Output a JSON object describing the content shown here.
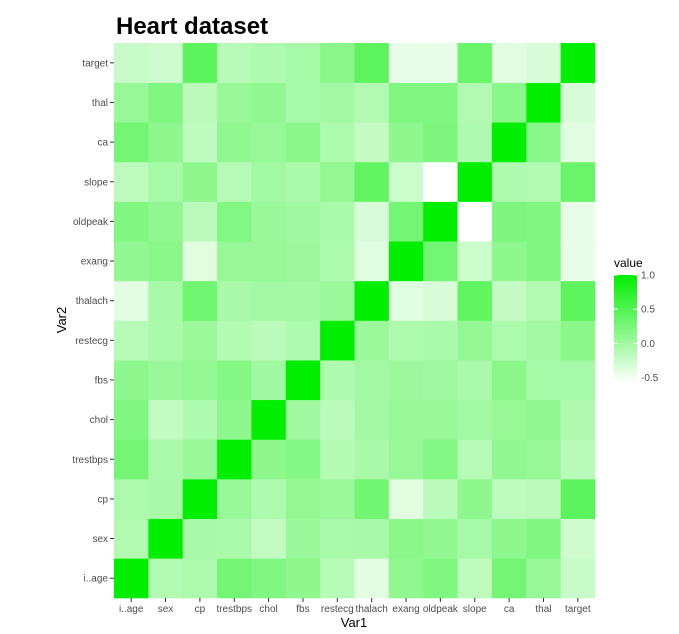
{
  "chart_data": {
    "type": "heatmap",
    "title": "Heart dataset",
    "xlabel": "Var1",
    "ylabel": "Var2",
    "x_categories": [
      "i..age",
      "sex",
      "cp",
      "trestbps",
      "chol",
      "fbs",
      "restecg",
      "thalach",
      "exang",
      "oldpeak",
      "slope",
      "ca",
      "thal",
      "target"
    ],
    "y_categories": [
      "i..age",
      "sex",
      "cp",
      "trestbps",
      "chol",
      "fbs",
      "restecg",
      "thalach",
      "exang",
      "oldpeak",
      "slope",
      "ca",
      "thal",
      "target"
    ],
    "values": [
      [
        1.0,
        -0.1,
        -0.07,
        0.28,
        0.21,
        0.12,
        -0.12,
        -0.4,
        0.1,
        0.21,
        -0.17,
        0.28,
        0.07,
        -0.23
      ],
      [
        -0.1,
        1.0,
        -0.05,
        -0.06,
        -0.2,
        0.05,
        -0.06,
        -0.04,
        0.14,
        0.1,
        -0.03,
        0.12,
        0.21,
        -0.28
      ],
      [
        -0.07,
        -0.05,
        1.0,
        0.05,
        -0.08,
        0.09,
        0.04,
        0.3,
        -0.39,
        -0.15,
        0.12,
        -0.18,
        -0.16,
        0.43
      ],
      [
        0.28,
        -0.06,
        0.05,
        1.0,
        0.12,
        0.18,
        -0.11,
        -0.05,
        0.07,
        0.19,
        -0.12,
        0.1,
        0.06,
        -0.14
      ],
      [
        0.21,
        -0.2,
        -0.08,
        0.12,
        1.0,
        0.01,
        -0.15,
        -0.01,
        0.07,
        0.05,
        -0.0,
        0.07,
        0.1,
        -0.09
      ],
      [
        0.12,
        0.05,
        0.09,
        0.18,
        0.01,
        1.0,
        -0.08,
        -0.01,
        0.03,
        0.01,
        -0.06,
        0.14,
        -0.03,
        -0.03
      ],
      [
        -0.12,
        -0.06,
        0.04,
        -0.11,
        -0.15,
        -0.08,
        1.0,
        0.04,
        -0.07,
        -0.06,
        0.09,
        -0.07,
        -0.01,
        0.14
      ],
      [
        -0.4,
        -0.04,
        0.3,
        -0.05,
        -0.01,
        -0.01,
        0.04,
        1.0,
        -0.38,
        -0.34,
        0.39,
        -0.21,
        -0.1,
        0.42
      ],
      [
        0.1,
        0.14,
        -0.39,
        0.07,
        0.07,
        0.03,
        -0.07,
        -0.38,
        1.0,
        0.29,
        -0.26,
        0.12,
        0.21,
        -0.44
      ],
      [
        0.21,
        0.1,
        -0.15,
        0.19,
        0.05,
        0.01,
        -0.06,
        -0.34,
        0.29,
        1.0,
        -0.58,
        0.22,
        0.21,
        -0.43
      ],
      [
        -0.17,
        -0.03,
        0.12,
        -0.12,
        -0.0,
        -0.06,
        0.09,
        0.39,
        -0.26,
        -0.58,
        1.0,
        -0.08,
        -0.1,
        0.35
      ],
      [
        0.28,
        0.12,
        -0.18,
        0.1,
        0.07,
        0.14,
        -0.07,
        -0.21,
        0.12,
        0.22,
        -0.08,
        1.0,
        0.15,
        -0.39
      ],
      [
        0.07,
        0.21,
        -0.16,
        0.06,
        0.1,
        -0.03,
        -0.01,
        -0.1,
        0.21,
        0.21,
        -0.1,
        0.15,
        1.0,
        -0.34
      ],
      [
        -0.23,
        -0.28,
        0.43,
        -0.14,
        -0.09,
        -0.03,
        0.14,
        0.42,
        -0.44,
        -0.43,
        0.35,
        -0.39,
        -0.34,
        1.0
      ]
    ],
    "color_scale": {
      "low": "#ffffff",
      "high": "#00ee00",
      "domain": [
        -0.58,
        1.0
      ]
    },
    "panel_background": "#ebebeb",
    "legend": {
      "title": "value",
      "position": "right",
      "ticks": [
        1.0,
        0.5,
        0.0,
        -0.5
      ],
      "tick_labels": [
        "1.0",
        "0.5",
        "0.0",
        "-0.5"
      ]
    }
  }
}
